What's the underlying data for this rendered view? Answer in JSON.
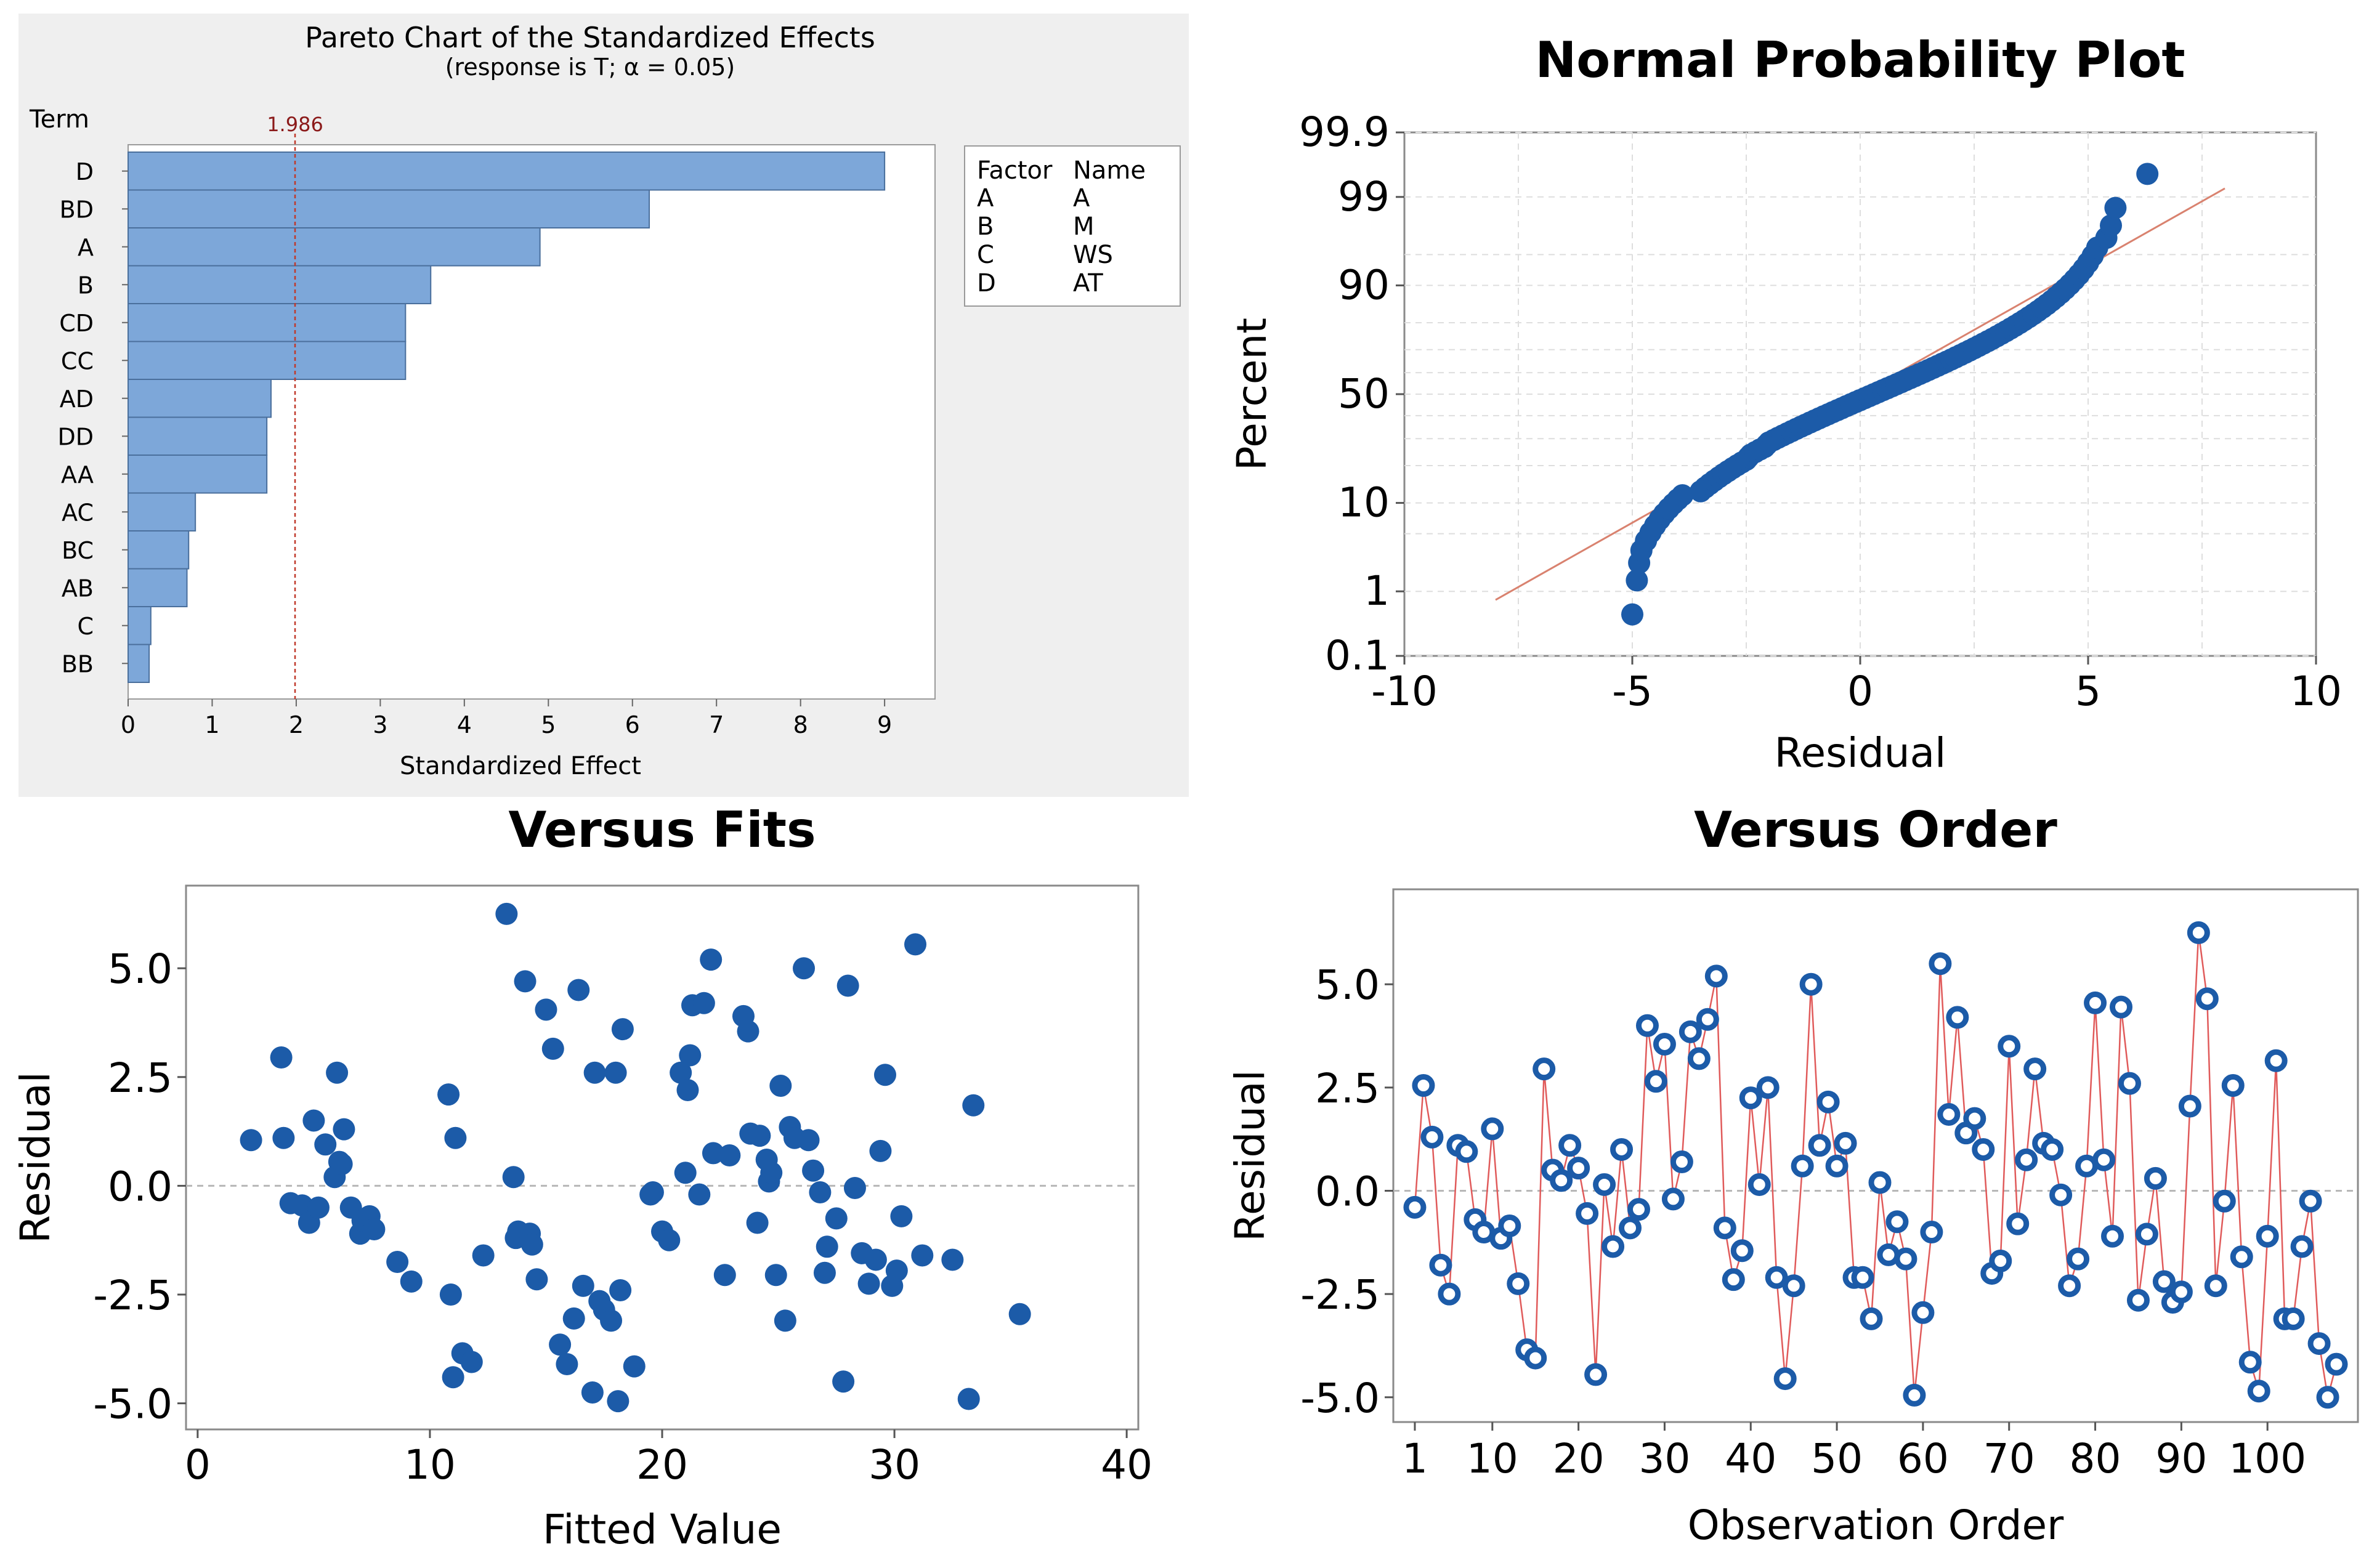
{
  "chart_data": [
    {
      "type": "bar",
      "orientation": "horizontal",
      "title": "Pareto Chart of the Standardized Effects",
      "subtitle": "(response is T; α = 0.05)",
      "ylabel": "Term",
      "xlabel": "Standardized Effect",
      "categories": [
        "D",
        "BD",
        "A",
        "B",
        "CD",
        "CC",
        "AD",
        "DD",
        "AA",
        "AC",
        "BC",
        "AB",
        "C",
        "BB"
      ],
      "values": [
        9.0,
        6.2,
        4.9,
        3.6,
        3.3,
        3.3,
        1.7,
        1.65,
        1.65,
        0.8,
        0.72,
        0.7,
        0.27,
        0.25
      ],
      "reference_line": {
        "value": 1.986,
        "label": "1.986"
      },
      "xlim": [
        0,
        9.6
      ],
      "xticks": [
        "0",
        "1",
        "2",
        "3",
        "4",
        "5",
        "6",
        "7",
        "8",
        "9"
      ],
      "bar_color": "#7DA7D9",
      "reference_color": "#C0392B",
      "legend": {
        "headers": [
          "Factor",
          "Name"
        ],
        "rows": [
          [
            "A",
            "A"
          ],
          [
            "B",
            "M"
          ],
          [
            "C",
            "WS"
          ],
          [
            "D",
            "AT"
          ]
        ]
      }
    },
    {
      "type": "scatter",
      "title": "Normal Probability Plot",
      "xlabel": "Residual",
      "ylabel": "Percent",
      "xlim": [
        -10,
        10
      ],
      "xticks": [
        "-10",
        "-5",
        "0",
        "5",
        "10"
      ],
      "yticks": [
        "99.9",
        "99",
        "90",
        "50",
        "10",
        "1",
        "0.1"
      ],
      "fit_line": {
        "x_start": -8,
        "x_end": 8
      },
      "point_color": "#1C5BA8",
      "line_color": "#D9826F",
      "residuals": [
        -5.0,
        -4.9,
        -4.85,
        -4.8,
        -4.7,
        -4.6,
        -4.5,
        -4.4,
        -4.3,
        -4.2,
        -4.1,
        -4.0,
        -3.9,
        -3.5,
        -3.4,
        -3.3,
        -3.2,
        -3.1,
        -3.0,
        -2.9,
        -2.8,
        -2.7,
        -2.6,
        -2.5,
        -2.45,
        -2.4,
        -2.3,
        -2.2,
        -2.1,
        -2.05,
        -2.0,
        -1.9,
        -1.8,
        -1.7,
        -1.6,
        -1.5,
        -1.4,
        -1.3,
        -1.2,
        -1.1,
        -1.0,
        -0.9,
        -0.8,
        -0.7,
        -0.6,
        -0.5,
        -0.4,
        -0.3,
        -0.2,
        -0.1,
        0.0,
        0.1,
        0.2,
        0.3,
        0.4,
        0.5,
        0.6,
        0.7,
        0.8,
        0.9,
        1.0,
        1.1,
        1.2,
        1.3,
        1.4,
        1.5,
        1.6,
        1.7,
        1.8,
        1.9,
        2.0,
        2.1,
        2.2,
        2.3,
        2.4,
        2.5,
        2.6,
        2.7,
        2.8,
        2.9,
        3.0,
        3.1,
        3.2,
        3.3,
        3.4,
        3.5,
        3.6,
        3.7,
        3.8,
        3.9,
        4.0,
        4.1,
        4.2,
        4.3,
        4.4,
        4.5,
        4.6,
        4.7,
        4.8,
        4.9,
        5.0,
        5.1,
        5.2,
        5.4,
        5.5,
        5.6,
        6.3
      ]
    },
    {
      "type": "scatter",
      "title": "Versus Fits",
      "xlabel": "Fitted Value",
      "ylabel": "Residual",
      "xlim": [
        -0.5,
        40.5
      ],
      "ylim": [
        -5.6,
        6.9
      ],
      "xticks": [
        "0",
        "10",
        "20",
        "30",
        "40"
      ],
      "yticks": [
        "5.0",
        "2.5",
        "0.0",
        "-2.5",
        "-5.0"
      ],
      "point_color": "#1C5BA8",
      "x": [
        2.3,
        3.6,
        3.7,
        4.0,
        4.5,
        4.8,
        5.0,
        5.2,
        5.5,
        5.9,
        6.0,
        6.1,
        6.2,
        6.3,
        6.6,
        7.0,
        7.1,
        7.4,
        7.6,
        8.6,
        9.2,
        10.8,
        10.9,
        11.0,
        11.1,
        11.4,
        11.8,
        12.3,
        13.3,
        13.6,
        13.7,
        13.8,
        14.1,
        14.3,
        14.4,
        14.6,
        15.0,
        15.3,
        15.6,
        15.9,
        16.2,
        16.4,
        16.6,
        17.0,
        17.1,
        17.3,
        17.5,
        17.8,
        18.0,
        18.1,
        18.2,
        18.3,
        18.8,
        19.5,
        19.6,
        20.0,
        20.3,
        20.8,
        21.0,
        21.1,
        21.2,
        21.3,
        21.6,
        21.8,
        22.1,
        22.2,
        22.7,
        22.9,
        23.5,
        23.7,
        23.8,
        24.1,
        24.2,
        24.5,
        24.6,
        24.7,
        24.9,
        25.1,
        25.3,
        25.5,
        25.7,
        26.1,
        26.3,
        26.5,
        26.8,
        27.0,
        27.1,
        27.5,
        27.8,
        28.0,
        28.3,
        28.6,
        28.9,
        29.2,
        29.4,
        29.6,
        29.9,
        30.1,
        30.3,
        30.9,
        31.2,
        32.5,
        33.2,
        33.4,
        35.4
      ],
      "y": [
        1.05,
        2.95,
        1.1,
        -0.4,
        -0.45,
        -0.85,
        1.5,
        -0.5,
        0.95,
        0.2,
        2.6,
        0.55,
        0.5,
        1.3,
        -0.5,
        -1.1,
        -0.8,
        -0.7,
        -1.0,
        -1.75,
        -2.2,
        2.1,
        -2.5,
        -4.4,
        1.1,
        -3.85,
        -4.05,
        -1.6,
        6.25,
        0.2,
        -1.2,
        -1.05,
        4.7,
        -1.1,
        -1.35,
        -2.15,
        4.05,
        3.15,
        -3.65,
        -4.1,
        -3.05,
        4.5,
        -2.3,
        -4.75,
        2.6,
        -2.65,
        -2.85,
        -3.1,
        2.6,
        -4.95,
        -2.4,
        3.6,
        -4.15,
        -0.2,
        -0.15,
        -1.05,
        -1.25,
        2.6,
        0.3,
        2.2,
        3.0,
        4.15,
        -0.2,
        4.2,
        5.2,
        0.75,
        -2.05,
        0.7,
        3.9,
        3.55,
        1.2,
        -0.85,
        1.15,
        0.6,
        0.1,
        0.3,
        -2.05,
        2.3,
        -3.1,
        1.35,
        1.1,
        5.0,
        1.05,
        0.35,
        -0.15,
        -2.0,
        -1.4,
        -0.75,
        -4.5,
        4.6,
        -0.05,
        -1.55,
        -2.25,
        -1.7,
        0.8,
        2.55,
        -2.3,
        -1.95,
        -0.7,
        5.55,
        -1.6,
        -1.7,
        -4.9,
        1.85,
        -2.95
      ]
    },
    {
      "type": "line",
      "title": "Versus Order",
      "xlabel": "Observation Order",
      "ylabel": "Residual",
      "xlim": [
        -1.5,
        110.5
      ],
      "ylim": [
        -5.6,
        7.3
      ],
      "xticks": [
        "1",
        "10",
        "20",
        "30",
        "40",
        "50",
        "60",
        "70",
        "80",
        "90",
        "100"
      ],
      "yticks": [
        "5.0",
        "2.5",
        "0.0",
        "-2.5",
        "-5.0"
      ],
      "point_color": "#1C5BA8",
      "line_color": "#E05A5A",
      "values": [
        -0.4,
        2.55,
        1.3,
        -1.8,
        -2.5,
        1.1,
        0.95,
        -0.7,
        -1.0,
        1.5,
        -1.15,
        -0.85,
        -2.25,
        -3.85,
        -4.05,
        2.95,
        0.5,
        0.25,
        1.1,
        0.55,
        -0.55,
        -4.45,
        0.15,
        -1.35,
        1.0,
        -0.9,
        -0.45,
        4.0,
        2.65,
        3.55,
        -0.2,
        0.7,
        3.85,
        3.2,
        4.15,
        5.2,
        -0.9,
        -2.15,
        -1.45,
        2.25,
        0.15,
        2.5,
        -2.1,
        -4.55,
        -2.3,
        0.6,
        5.0,
        1.1,
        2.15,
        0.6,
        1.15,
        -2.1,
        -2.1,
        -3.1,
        0.2,
        -1.55,
        -0.75,
        -1.65,
        -4.95,
        -2.95,
        -1.0,
        5.5,
        1.85,
        4.2,
        1.4,
        1.75,
        1.0,
        -2.0,
        -1.7,
        3.5,
        -0.8,
        0.75,
        2.95,
        1.15,
        1.0,
        -0.1,
        -2.3,
        -1.65,
        0.6,
        4.55,
        0.75,
        -1.1,
        4.45,
        2.6,
        -2.65,
        -1.05,
        0.3,
        -2.2,
        -2.7,
        -2.45,
        2.05,
        6.25,
        4.65,
        -2.3,
        -0.25,
        2.55,
        -1.6,
        -4.15,
        -4.85,
        -1.1,
        3.15,
        -3.1,
        -3.1,
        -1.35,
        -0.25,
        -3.7,
        -5.0,
        -4.2
      ]
    }
  ]
}
